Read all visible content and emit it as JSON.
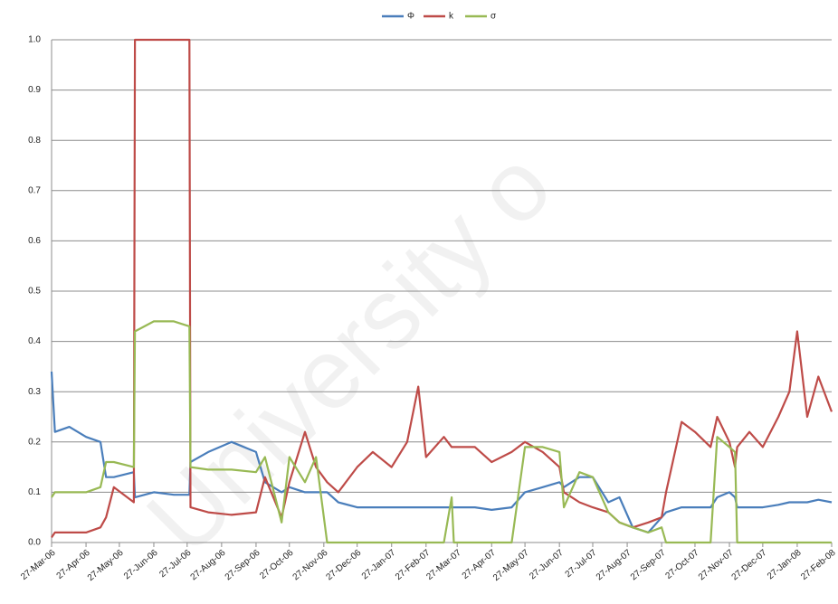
{
  "chart_data": {
    "type": "line",
    "watermark": "University o",
    "x": [
      "2006-03-27",
      "2006-03-30",
      "2006-04-12",
      "2006-04-27",
      "2006-05-10",
      "2006-05-15",
      "2006-05-22",
      "2006-06-09",
      "2006-06-10",
      "2006-06-27",
      "2006-07-15",
      "2006-07-29",
      "2006-07-30",
      "2006-08-15",
      "2006-09-05",
      "2006-09-27",
      "2006-10-05",
      "2006-10-20",
      "2006-10-27",
      "2006-11-10",
      "2006-11-20",
      "2006-11-30",
      "2006-12-10",
      "2006-12-27",
      "2007-01-10",
      "2007-01-27",
      "2007-02-10",
      "2007-02-20",
      "2007-02-27",
      "2007-03-15",
      "2007-03-22",
      "2007-03-24",
      "2007-04-12",
      "2007-04-27",
      "2007-05-15",
      "2007-05-27",
      "2007-06-12",
      "2007-06-27",
      "2007-07-01",
      "2007-07-15",
      "2007-07-27",
      "2007-08-10",
      "2007-08-20",
      "2007-09-01",
      "2007-09-15",
      "2007-09-27",
      "2007-10-01",
      "2007-10-15",
      "2007-10-27",
      "2007-11-10",
      "2007-11-16",
      "2007-11-27",
      "2007-12-02",
      "2007-12-04",
      "2007-12-15",
      "2007-12-27",
      "2008-01-10",
      "2008-01-20",
      "2008-01-27",
      "2008-02-05",
      "2008-02-15",
      "2008-02-27"
    ],
    "series": [
      {
        "name": "Φ",
        "color": "#4a7ebb",
        "values": [
          0.34,
          0.22,
          0.23,
          0.21,
          0.2,
          0.13,
          0.13,
          0.14,
          0.09,
          0.1,
          0.095,
          0.095,
          0.16,
          0.18,
          0.2,
          0.18,
          0.12,
          0.1,
          0.11,
          0.1,
          0.1,
          0.1,
          0.08,
          0.07,
          0.07,
          0.07,
          0.07,
          0.07,
          0.07,
          0.07,
          0.07,
          0.07,
          0.07,
          0.065,
          0.07,
          0.1,
          0.11,
          0.12,
          0.11,
          0.13,
          0.13,
          0.08,
          0.09,
          0.03,
          0.02,
          0.05,
          0.06,
          0.07,
          0.07,
          0.07,
          0.09,
          0.1,
          0.09,
          0.07,
          0.07,
          0.07,
          0.075,
          0.08,
          0.08,
          0.08,
          0.085,
          0.08
        ]
      },
      {
        "name": "k",
        "color": "#be4b48",
        "values": [
          0.01,
          0.02,
          0.02,
          0.02,
          0.03,
          0.05,
          0.11,
          0.08,
          1.0,
          1.0,
          1.0,
          1.0,
          0.07,
          0.06,
          0.055,
          0.06,
          0.13,
          0.05,
          0.12,
          0.22,
          0.15,
          0.12,
          0.1,
          0.15,
          0.18,
          0.15,
          0.2,
          0.31,
          0.17,
          0.21,
          0.19,
          0.19,
          0.19,
          0.16,
          0.18,
          0.2,
          0.18,
          0.15,
          0.1,
          0.08,
          0.07,
          0.06,
          0.04,
          0.03,
          0.04,
          0.05,
          0.1,
          0.24,
          0.22,
          0.19,
          0.25,
          0.2,
          0.15,
          0.19,
          0.22,
          0.19,
          0.25,
          0.3,
          0.42,
          0.25,
          0.33,
          0.26
        ]
      },
      {
        "name": "σ",
        "color": "#98b954",
        "values": [
          0.09,
          0.1,
          0.1,
          0.1,
          0.11,
          0.16,
          0.16,
          0.15,
          0.42,
          0.44,
          0.44,
          0.43,
          0.15,
          0.145,
          0.145,
          0.14,
          0.17,
          0.04,
          0.17,
          0.12,
          0.17,
          0.0,
          0.0,
          0.0,
          0.0,
          0.0,
          0.0,
          0.0,
          0.0,
          0.0,
          0.09,
          0.0,
          0.0,
          0.0,
          0.0,
          0.19,
          0.19,
          0.18,
          0.07,
          0.14,
          0.13,
          0.06,
          0.04,
          0.03,
          0.02,
          0.03,
          0.0,
          0.0,
          0.0,
          0.0,
          0.21,
          0.19,
          0.18,
          0.0,
          0.0,
          0.0,
          0.0,
          0.0,
          0.0,
          0.0,
          0.0,
          0.0
        ]
      }
    ],
    "ylim": [
      0,
      1
    ],
    "yticks": [
      {
        "value": 0,
        "label": "0.0"
      },
      0.1,
      0.2,
      0.3,
      0.4,
      0.5,
      0.6,
      0.7,
      0.8,
      0.9,
      {
        "value": 1,
        "label": "1.0"
      }
    ],
    "xlim": [
      "2006-03-27",
      "2008-02-27"
    ],
    "xticks": [
      {
        "value": "2006-03-27",
        "label": "27-Mar-06"
      },
      {
        "value": "2006-04-27",
        "label": "27-Apr-06"
      },
      {
        "value": "2006-05-27",
        "label": "27-May-06"
      },
      {
        "value": "2006-06-27",
        "label": "27-Jun-06"
      },
      {
        "value": "2006-07-27",
        "label": "27-Jul-06"
      },
      {
        "value": "2006-08-27",
        "label": "27-Aug-06"
      },
      {
        "value": "2006-09-27",
        "label": "27-Sep-06"
      },
      {
        "value": "2006-10-27",
        "label": "27-Oct-06"
      },
      {
        "value": "2006-11-27",
        "label": "27-Nov-06"
      },
      {
        "value": "2006-12-27",
        "label": "27-Dec-06"
      },
      {
        "value": "2007-01-27",
        "label": "27-Jan-07"
      },
      {
        "value": "2007-02-27",
        "label": "27-Feb-07"
      },
      {
        "value": "2007-03-27",
        "label": "27-Mar-07"
      },
      {
        "value": "2007-04-27",
        "label": "27-Apr-07"
      },
      {
        "value": "2007-05-27",
        "label": "27-May-07"
      },
      {
        "value": "2007-06-27",
        "label": "27-Jun-07"
      },
      {
        "value": "2007-07-27",
        "label": "27-Jul-07"
      },
      {
        "value": "2007-08-27",
        "label": "27-Aug-07"
      },
      {
        "value": "2007-09-27",
        "label": "27-Sep-07"
      },
      {
        "value": "2007-10-27",
        "label": "27-Oct-07"
      },
      {
        "value": "2007-11-27",
        "label": "27-Nov-07"
      },
      {
        "value": "2007-12-27",
        "label": "27-Dec-07"
      },
      {
        "value": "2008-01-27",
        "label": "27-Jan-08"
      },
      {
        "value": "2008-02-27",
        "label": "27-Feb-08"
      }
    ],
    "grid": true,
    "legend": "top"
  }
}
